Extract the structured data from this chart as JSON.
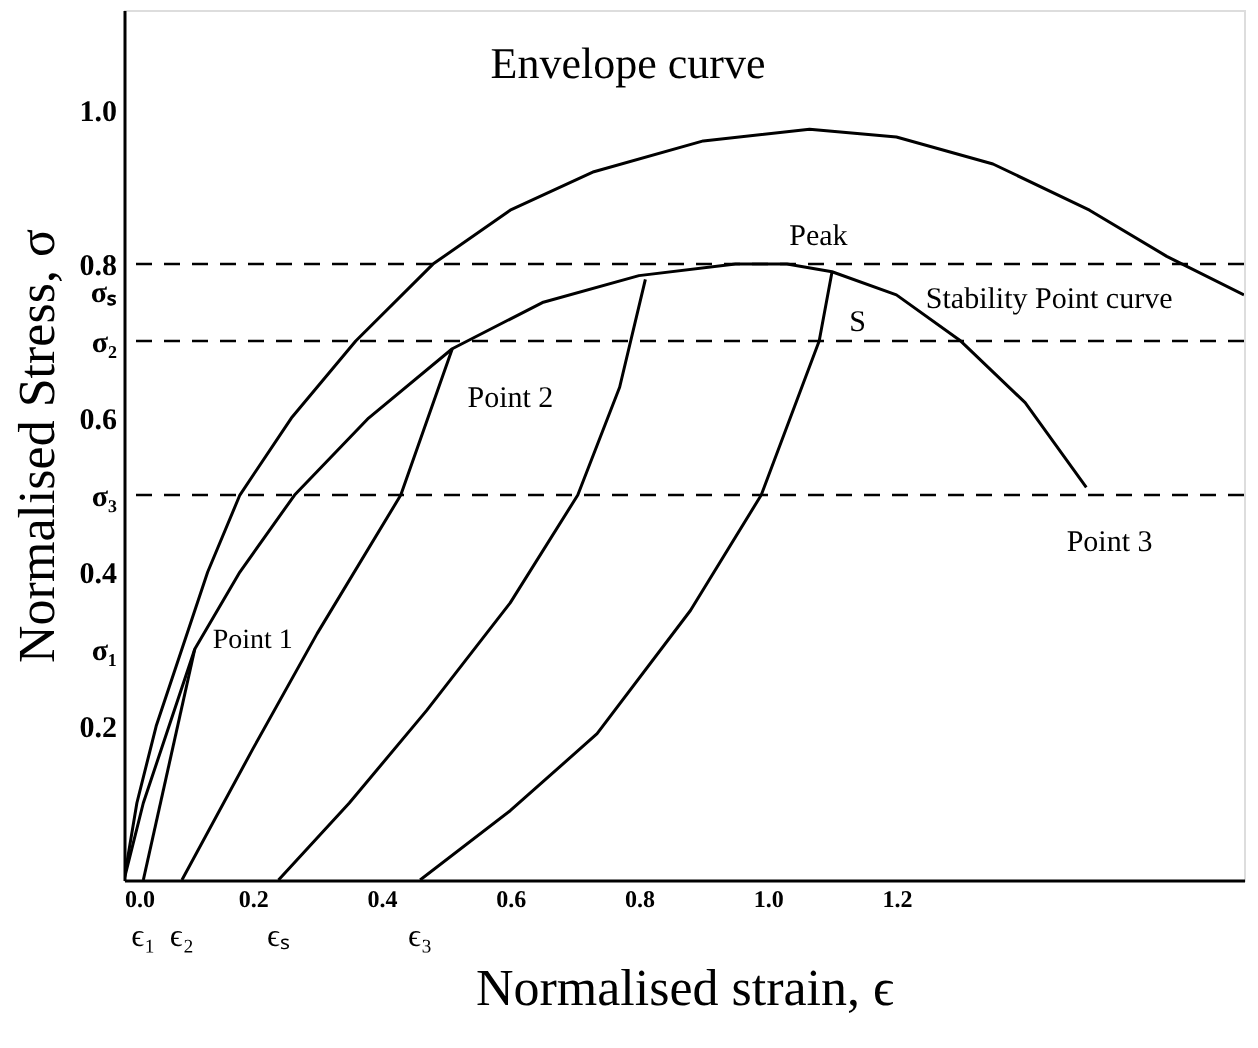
{
  "chart_data": {
    "type": "line",
    "xlabel": "Normalised strain, ϵ",
    "ylabel": "Normalised Stress, σ",
    "xlim": [
      0,
      1.74
    ],
    "ylim": [
      0,
      1.13
    ],
    "xticks": [
      {
        "value": 0,
        "label": "0.0"
      },
      0.2,
      0.4,
      0.6,
      0.8,
      {
        "value": 1,
        "label": "1.0"
      },
      1.2
    ],
    "yticks": [
      0.2,
      {
        "value": 0.3,
        "label": "σ₁"
      },
      0.4,
      {
        "value": 0.5,
        "label": "σ₃"
      },
      0.6,
      {
        "value": 0.7,
        "label": "σ₂"
      },
      {
        "value": 0.765,
        "label": "σₛ"
      },
      0.8,
      {
        "value": 1,
        "label": "1.0"
      }
    ],
    "grid": false,
    "legend": false,
    "marker": "none",
    "line_style": "solid",
    "series": [
      {
        "color": "#000000",
        "x": [
          0,
          0.02,
          0.05,
          0.09,
          0.13,
          0.18,
          0.26,
          0.36,
          0.48,
          0.6,
          0.73,
          0.9,
          1.065,
          1.2,
          1.35,
          1.5,
          1.62,
          1.74
        ],
        "values": [
          0,
          0.1,
          0.2,
          0.3,
          0.4,
          0.5,
          0.6,
          0.7,
          0.8,
          0.87,
          0.92,
          0.96,
          0.975,
          0.965,
          0.93,
          0.87,
          0.81,
          0.76
        ]
      },
      {
        "color": "#000000",
        "x": [
          0,
          0.03,
          0.07,
          0.11,
          0.18,
          0.265,
          0.38,
          0.51,
          0.65,
          0.8,
          0.95,
          1.03,
          1.1,
          1.2,
          1.3,
          1.4,
          1.495
        ],
        "values": [
          0,
          0.1,
          0.2,
          0.3,
          0.4,
          0.5,
          0.6,
          0.69,
          0.75,
          0.785,
          0.8,
          0.8,
          0.79,
          0.76,
          0.7,
          0.62,
          0.51
        ]
      },
      {
        "color": "#000000",
        "x": [
          0.03,
          0.11
        ],
        "values": [
          0,
          0.3
        ]
      },
      {
        "color": "#000000",
        "x": [
          0.09,
          0.2,
          0.3,
          0.43,
          0.51
        ],
        "values": [
          0,
          0.17,
          0.32,
          0.5,
          0.69
        ]
      },
      {
        "color": "#000000",
        "x": [
          0.24,
          0.35,
          0.47,
          0.6,
          0.705,
          0.77,
          0.81
        ],
        "values": [
          0,
          0.1,
          0.22,
          0.36,
          0.5,
          0.64,
          0.78
        ]
      },
      {
        "color": "#000000",
        "x": [
          0.46,
          0.6,
          0.735,
          0.88,
          0.99,
          1.08,
          1.1
        ],
        "values": [
          0,
          0.09,
          0.19,
          0.35,
          0.5,
          0.7,
          0.79
        ]
      }
    ],
    "ref_lines": [
      {
        "axis": "y",
        "value": 0.8,
        "line_style": "dashed",
        "color": "#000000"
      },
      {
        "axis": "y",
        "value": 0.7,
        "line_style": "dashed",
        "color": "#000000"
      },
      {
        "axis": "y",
        "value": 0.5,
        "line_style": "dashed",
        "color": "#000000"
      }
    ],
    "annotations": [
      "Envelope curve",
      "Peak",
      "S",
      "Stability Point curve",
      "Point 1",
      "Point 2",
      "Point 3",
      {
        "text": "ϵ₁",
        "x": 0.03,
        "y": 0
      },
      {
        "text": "ϵ₂",
        "x": 0.09,
        "y": 0
      },
      {
        "text": "ϵₛ",
        "x": 0.24,
        "y": 0
      },
      {
        "text": "ϵ₃",
        "x": 0.46,
        "y": 0
      }
    ]
  }
}
